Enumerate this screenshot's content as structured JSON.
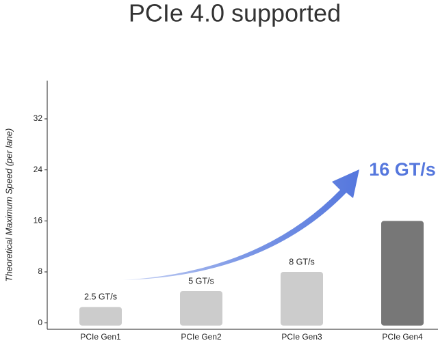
{
  "chart_data": {
    "type": "bar",
    "title": "PCIe 4.0  supported",
    "y_label": "Theoretical Maximum Speed (per lane)",
    "categories": [
      "PCIe Gen1",
      "PCIe Gen2",
      "PCIe Gen3",
      "PCIe Gen4"
    ],
    "values": [
      2.5,
      5,
      8,
      16
    ],
    "value_labels": [
      "2.5 GT/s",
      "5 GT/s",
      "8 GT/s",
      "16 GT/s"
    ],
    "colors": [
      "#cccccc",
      "#cccccc",
      "#cccccc",
      "#777777"
    ],
    "ylim": [
      -1,
      38
    ],
    "yticks": [
      0,
      8,
      16,
      24,
      32
    ],
    "grid": false
  }
}
